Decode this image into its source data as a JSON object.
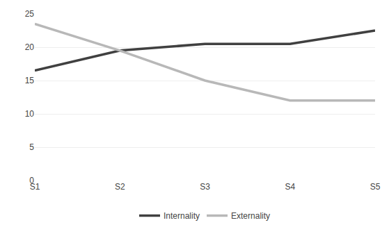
{
  "chart_data": {
    "type": "line",
    "categories": [
      "S1",
      "S2",
      "S3",
      "S4",
      "S5"
    ],
    "series": [
      {
        "name": "Internality",
        "color": "#404040",
        "values": [
          16.5,
          19.5,
          20.5,
          20.5,
          22.5
        ]
      },
      {
        "name": "Externality",
        "color": "#b8b8b8",
        "values": [
          23.5,
          19.5,
          15.0,
          12.0,
          12.0
        ]
      }
    ],
    "ylim": [
      0,
      25
    ],
    "yticks": [
      0,
      5,
      10,
      15,
      20,
      25
    ],
    "grid": true,
    "legend": "bottom"
  }
}
